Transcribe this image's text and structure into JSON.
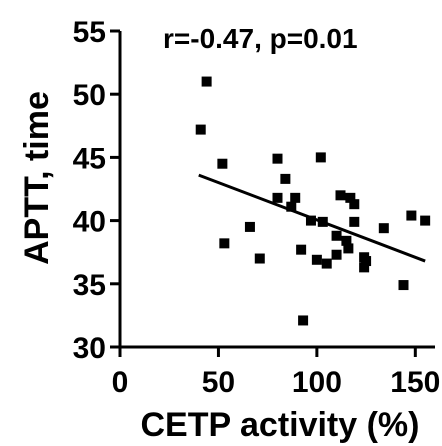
{
  "chart_data": {
    "type": "scatter",
    "xlabel": "CETP activity (%)",
    "ylabel": "APTT, time",
    "annotation": "r=-0.47, p=0.01",
    "xlim": [
      0,
      160
    ],
    "ylim": [
      30,
      55
    ],
    "x_ticks": [
      "0",
      "50",
      "100",
      "150"
    ],
    "y_ticks": [
      "30",
      "35",
      "40",
      "45",
      "50",
      "55"
    ],
    "x_tick_values": [
      0,
      50,
      100,
      150
    ],
    "y_tick_values": [
      30,
      35,
      40,
      45,
      50,
      55
    ],
    "grid": false,
    "points": [
      {
        "x": 41,
        "y": 47.2
      },
      {
        "x": 44,
        "y": 51.0
      },
      {
        "x": 52,
        "y": 44.5
      },
      {
        "x": 53,
        "y": 38.2
      },
      {
        "x": 66,
        "y": 39.5
      },
      {
        "x": 71,
        "y": 37.0
      },
      {
        "x": 80,
        "y": 41.8
      },
      {
        "x": 80,
        "y": 44.9
      },
      {
        "x": 84,
        "y": 43.3
      },
      {
        "x": 87,
        "y": 41.1
      },
      {
        "x": 89,
        "y": 41.8
      },
      {
        "x": 92,
        "y": 37.7
      },
      {
        "x": 93,
        "y": 32.1
      },
      {
        "x": 97,
        "y": 40.0
      },
      {
        "x": 100,
        "y": 36.9
      },
      {
        "x": 102,
        "y": 45.0
      },
      {
        "x": 103,
        "y": 39.9
      },
      {
        "x": 105,
        "y": 36.6
      },
      {
        "x": 110,
        "y": 37.3
      },
      {
        "x": 110,
        "y": 38.8
      },
      {
        "x": 112,
        "y": 42.0
      },
      {
        "x": 115,
        "y": 38.4
      },
      {
        "x": 116,
        "y": 37.8
      },
      {
        "x": 117,
        "y": 41.8
      },
      {
        "x": 119,
        "y": 41.3
      },
      {
        "x": 119,
        "y": 39.9
      },
      {
        "x": 124,
        "y": 37.1
      },
      {
        "x": 124,
        "y": 36.3
      },
      {
        "x": 125,
        "y": 36.8
      },
      {
        "x": 134,
        "y": 39.4
      },
      {
        "x": 144,
        "y": 34.9
      },
      {
        "x": 148,
        "y": 40.4
      },
      {
        "x": 155,
        "y": 40.0
      }
    ],
    "regression_line": {
      "x": [
        40,
        155
      ],
      "y": [
        43.6,
        36.8
      ]
    }
  }
}
